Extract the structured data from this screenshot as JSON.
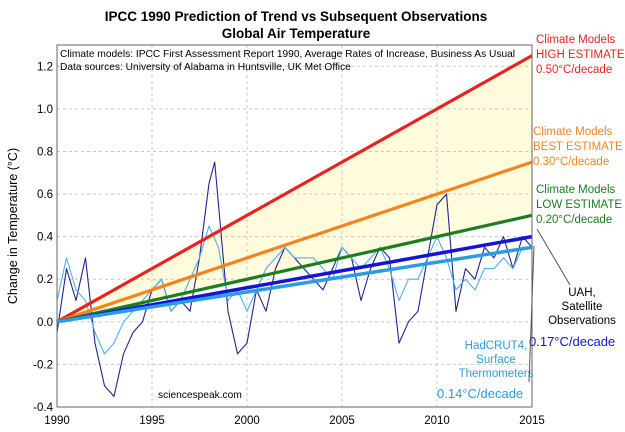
{
  "chart_data": {
    "type": "line",
    "title": "IPCC 1990 Prediction of Trend vs Subsequent Observations",
    "subtitle": "Global Air Temperature",
    "notes": [
      "Climate models: IPCC First Assessment Report 1990, Average Rates of Increase, Business As Usual",
      "Data sources: University of Alabama in Huntsville, UK Met Office"
    ],
    "watermark": "sciencespeak.com",
    "ylabel": "Change in Temperature (°C)",
    "xlim": [
      1990,
      2015
    ],
    "ylim": [
      -0.4,
      1.3
    ],
    "x_ticks": [
      "1990",
      "1995",
      "2000",
      "2005",
      "2010",
      "2015"
    ],
    "y_ticks": [
      "-0.4",
      "-0.2",
      "0.0",
      "0.2",
      "0.4",
      "0.6",
      "0.8",
      "1.0",
      "1.2"
    ],
    "grid": true,
    "trends": [
      {
        "key": "high",
        "color": "#e8231e",
        "x": [
          1990,
          2015
        ],
        "y": [
          0.0,
          1.25
        ],
        "label_lines": [
          "Climate Models",
          "HIGH ESTIMATE",
          "0.50°C/decade"
        ]
      },
      {
        "key": "best",
        "color": "#f5841f",
        "x": [
          1990,
          2015
        ],
        "y": [
          0.0,
          0.75
        ],
        "label_lines": [
          "Climate Models",
          "BEST ESTIMATE",
          "0.30°C/decade"
        ]
      },
      {
        "key": "low",
        "color": "#1e7d1e",
        "x": [
          1990,
          2015
        ],
        "y": [
          0.0,
          0.5
        ],
        "label_lines": [
          "Climate Models",
          "LOW ESTIMATE",
          "0.20°C/decade"
        ]
      },
      {
        "key": "uah",
        "color": "#1414d2",
        "x": [
          1990,
          2015
        ],
        "y": [
          0.0,
          0.4
        ],
        "label_lines": [
          "UAH,",
          "Satellite",
          "Observations"
        ],
        "rate": "0.17°C/decade"
      },
      {
        "key": "hadcrut",
        "color": "#2c9ce0",
        "x": [
          1990,
          2015
        ],
        "y": [
          0.0,
          0.35
        ],
        "label_lines": [
          "HadCRUT4,",
          "Surface",
          "Thermometers"
        ],
        "rate": "0.14°C/decade"
      }
    ],
    "series": [
      {
        "key": "uah_monthly",
        "color": "#23238f",
        "x": [
          1990.0,
          1990.5,
          1991.0,
          1991.5,
          1992.0,
          1992.5,
          1993.0,
          1993.5,
          1994.0,
          1994.5,
          1995.0,
          1995.5,
          1996.0,
          1996.5,
          1997.0,
          1997.5,
          1998.0,
          1998.3,
          1998.6,
          1999.0,
          1999.5,
          2000.0,
          2000.5,
          2001.0,
          2001.5,
          2002.0,
          2002.5,
          2003.0,
          2003.5,
          2004.0,
          2004.5,
          2005.0,
          2005.5,
          2006.0,
          2006.5,
          2007.0,
          2007.5,
          2008.0,
          2008.5,
          2009.0,
          2009.5,
          2010.0,
          2010.5,
          2011.0,
          2011.5,
          2012.0,
          2012.5,
          2013.0,
          2013.5,
          2014.0,
          2014.5,
          2015.0
        ],
        "y": [
          -0.05,
          0.25,
          0.1,
          0.3,
          -0.1,
          -0.3,
          -0.35,
          -0.15,
          -0.05,
          0.0,
          0.15,
          0.2,
          0.05,
          0.1,
          0.05,
          0.3,
          0.65,
          0.75,
          0.45,
          0.05,
          -0.15,
          -0.1,
          0.15,
          0.05,
          0.25,
          0.35,
          0.3,
          0.25,
          0.2,
          0.15,
          0.25,
          0.35,
          0.3,
          0.1,
          0.25,
          0.35,
          0.3,
          -0.1,
          0.0,
          0.05,
          0.3,
          0.55,
          0.6,
          0.05,
          0.25,
          0.2,
          0.35,
          0.3,
          0.4,
          0.25,
          0.4,
          0.35
        ]
      },
      {
        "key": "hadcrut_monthly",
        "color": "#4fb0ec",
        "x": [
          1990.0,
          1990.5,
          1991.0,
          1991.5,
          1992.0,
          1992.5,
          1993.0,
          1993.5,
          1994.0,
          1994.5,
          1995.0,
          1995.5,
          1996.0,
          1996.5,
          1997.0,
          1997.5,
          1998.0,
          1998.5,
          1999.0,
          1999.5,
          2000.0,
          2000.5,
          2001.0,
          2001.5,
          2002.0,
          2002.5,
          2003.0,
          2003.5,
          2004.0,
          2004.5,
          2005.0,
          2005.5,
          2006.0,
          2006.5,
          2007.0,
          2007.5,
          2008.0,
          2008.5,
          2009.0,
          2009.5,
          2010.0,
          2010.5,
          2011.0,
          2011.5,
          2012.0,
          2012.5,
          2013.0,
          2013.5,
          2014.0,
          2014.5,
          2015.0
        ],
        "y": [
          0.1,
          0.3,
          0.15,
          0.1,
          -0.05,
          -0.15,
          -0.1,
          0.0,
          0.05,
          0.1,
          0.15,
          0.2,
          0.05,
          0.1,
          0.2,
          0.3,
          0.45,
          0.35,
          0.1,
          0.15,
          0.05,
          0.15,
          0.25,
          0.3,
          0.35,
          0.3,
          0.3,
          0.3,
          0.25,
          0.2,
          0.35,
          0.3,
          0.25,
          0.3,
          0.35,
          0.25,
          0.1,
          0.2,
          0.2,
          0.3,
          0.4,
          0.3,
          0.15,
          0.2,
          0.15,
          0.25,
          0.25,
          0.3,
          0.25,
          0.35,
          0.35
        ]
      }
    ]
  }
}
